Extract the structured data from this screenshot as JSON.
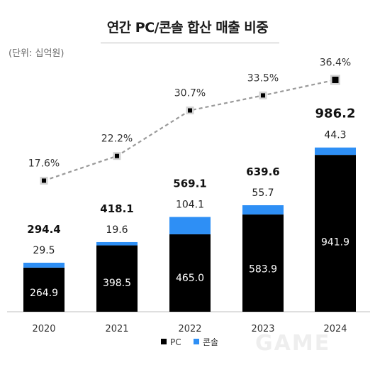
{
  "title": "연간 PC/콘솔 합산 매출 비중",
  "unit": "(단위: 십억원)",
  "chart_data": {
    "type": "bar",
    "stacked": true,
    "categories": [
      "2020",
      "2021",
      "2022",
      "2023",
      "2024"
    ],
    "series": [
      {
        "name": "PC",
        "values": [
          264.9,
          398.5,
          465.0,
          583.9,
          941.9
        ],
        "color": "#000000"
      },
      {
        "name": "콘솔",
        "values": [
          29.5,
          19.6,
          104.1,
          55.7,
          44.3
        ],
        "color": "#2e8ff5"
      }
    ],
    "pc_labels": [
      "264.9",
      "398.5",
      "465.0",
      "583.9",
      "941.9"
    ],
    "console_labels": [
      "29.5",
      "19.6",
      "104.1",
      "55.7",
      "44.3"
    ],
    "totals": [
      "294.4",
      "418.1",
      "569.1",
      "639.6",
      "986.2"
    ],
    "share_line": {
      "values": [
        17.6,
        22.2,
        30.7,
        33.5,
        36.4
      ],
      "labels": [
        "17.6%",
        "22.2%",
        "30.7%",
        "33.5%",
        "36.4%"
      ],
      "style": "dashed",
      "color": "#9a9a9a"
    },
    "legend": [
      "PC",
      "콘솔"
    ],
    "legend_position": "bottom",
    "grid": false
  },
  "watermark": "GAME"
}
